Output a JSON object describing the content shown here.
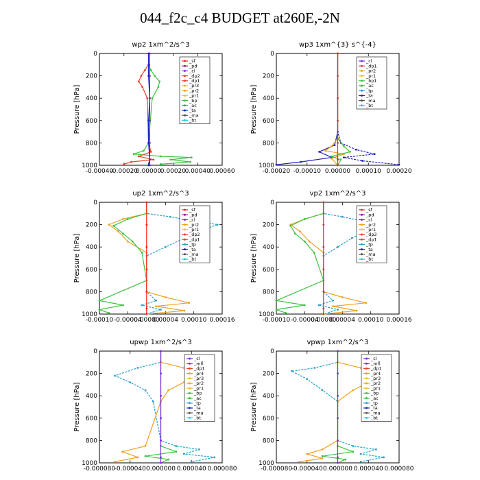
{
  "title": "044_f2c_c4  BUDGET at260E,-2N",
  "colors": {
    "sf": "#ff2020",
    "pd": "#8a1a8a",
    "cl": "#7a2ae0",
    "mfl": "#7a2ae0",
    "dp2": "#e8402a",
    "dp1": "#e8402a",
    "pr3": "#e8c020",
    "pr2": "#f0a020",
    "pr1": "#f0c030",
    "bp": "#40c040",
    "bp1": "#40c040",
    "ac": "#30b830",
    "tp": "#2aa0c8",
    "ta": "#2020c0",
    "ma": "#505050",
    "bt": "#20c8e0",
    "pr4": "#e0a020",
    "frame": "#000000"
  },
  "chart_data": [
    {
      "type": "line",
      "title": "wp2  1xm^2/s^3",
      "ylabel": "Pressure [hPa]",
      "xlim": [
        -0.0004,
        0.0006
      ],
      "ylim": [
        1000,
        0
      ],
      "xticks": [
        "-0.00040",
        "-0.00020",
        "0.00000",
        "0.00020",
        "0.00040",
        "0.00060"
      ],
      "xtick_values": [
        -0.0004,
        -0.0002,
        0,
        0.0002,
        0.0004,
        0.0006
      ],
      "yticks": [
        "0",
        "200",
        "400",
        "600",
        "800",
        "1000"
      ],
      "legend": [
        "_sf",
        "_pd",
        "_cl",
        "_dp2",
        "_dp1",
        "_pr3",
        "_pr2",
        "_pr1",
        "_bp",
        "_ac",
        "_ta",
        "_ma",
        "_bt"
      ],
      "series": [
        {
          "name": "_bp",
          "color": "bp",
          "x": [
            0,
            2e-05,
            5e-05,
            9e-05,
            8e-05,
            3e-05,
            0,
            -4e-05,
            -0.00012,
            0.0001,
            0.00035,
            0.00018,
            0.00034,
            0.0001
          ],
          "y": [
            100,
            150,
            200,
            250,
            300,
            400,
            800,
            870,
            900,
            920,
            930,
            950,
            970,
            990
          ]
        },
        {
          "name": "_dp1",
          "color": "dp1",
          "x": [
            0,
            -3e-05,
            -6e-05,
            -8e-05,
            -5e-05,
            -1e-05,
            0,
            2e-05,
            -8e-05,
            4e-05,
            -0.00014,
            -0.0002
          ],
          "y": [
            100,
            150,
            200,
            250,
            300,
            400,
            800,
            880,
            920,
            950,
            970,
            990
          ]
        },
        {
          "name": "_ta",
          "color": "ta",
          "x": [
            0,
            0,
            1e-05,
            0,
            0,
            1e-05,
            0
          ],
          "y": [
            0,
            200,
            400,
            600,
            800,
            950,
            1000
          ]
        },
        {
          "name": "_pd",
          "color": "pd",
          "x": [
            1e-05,
            1e-05,
            1e-05,
            1e-05,
            1e-05,
            1e-05,
            1e-05
          ],
          "y": [
            0,
            200,
            400,
            600,
            800,
            950,
            1000
          ]
        }
      ]
    },
    {
      "type": "line",
      "title": "wp3  1xm^{3} s^{-4}",
      "ylabel": "Pressure [hPa]",
      "xlim": [
        -0.0002,
        0.0002
      ],
      "ylim": [
        1000,
        0
      ],
      "xticks": [
        "-0.00020",
        "-0.00010",
        "0.00000",
        "0.00010",
        "0.00020"
      ],
      "xtick_values": [
        -0.0002,
        -0.0001,
        0,
        0.0001,
        0.0002
      ],
      "yticks": [
        "0",
        "200",
        "400",
        "600",
        "800",
        "1000"
      ],
      "legend": [
        "_cl",
        "_dp1",
        "_pr2",
        "_pr1",
        "_bp1",
        "_ac",
        "_tp",
        "_ta",
        "_ma",
        "_bt"
      ],
      "series": [
        {
          "name": "_tp",
          "color": "ta",
          "x": [
            0,
            0,
            1e-05,
            6e-05,
            0.00012,
            2e-05,
            8e-05,
            0.0002
          ],
          "y": [
            0,
            700,
            800,
            860,
            900,
            930,
            960,
            995
          ]
        },
        {
          "name": "_ta",
          "color": "ta",
          "x": [
            0,
            0,
            -1e-05,
            -6e-05,
            -2e-05,
            -0.00012,
            -0.0002
          ],
          "y": [
            0,
            700,
            820,
            880,
            930,
            970,
            995
          ]
        },
        {
          "name": "_pr2",
          "color": "pr2",
          "x": [
            0,
            0,
            -2e-05,
            -4e-05,
            2e-05,
            -2e-05,
            0
          ],
          "y": [
            0,
            760,
            830,
            870,
            900,
            940,
            1000
          ]
        },
        {
          "name": "_bp1",
          "color": "bp1",
          "x": [
            0,
            0,
            2e-05,
            4e-05,
            -2e-05,
            1e-05,
            0
          ],
          "y": [
            0,
            760,
            830,
            880,
            920,
            950,
            1000
          ]
        },
        {
          "name": "_cl",
          "color": "sf",
          "x": [
            0,
            0,
            0,
            0,
            0,
            0,
            0
          ],
          "y": [
            0,
            200,
            400,
            600,
            800,
            950,
            1000
          ]
        }
      ]
    },
    {
      "type": "line",
      "title": "up2  1xm^2/s^3",
      "ylabel": "Pressure [hPa]",
      "xlim": [
        -0.0001,
        0.00016
      ],
      "ylim": [
        1000,
        0
      ],
      "xticks": [
        "-0.00010",
        "-0.00004",
        "0.00000",
        "0.00004",
        "0.00010",
        "0.00016"
      ],
      "xtick_values": [
        -0.0001,
        -4e-05,
        0,
        4e-05,
        0.0001,
        0.00016
      ],
      "yticks": [
        "0",
        "200",
        "400",
        "600",
        "800",
        "1000"
      ],
      "legend": [
        "_sf",
        "_pd",
        "_cl",
        "_pr2",
        "_pr1",
        "_dp2",
        "_dp1",
        "_tp",
        "_ta",
        "_ma",
        "_bt"
      ],
      "series": [
        {
          "name": "_tp",
          "color": "tp",
          "x": [
            0,
            0,
            5e-05,
            0.00015,
            0.00011,
            8e-05,
            4e-05,
            0,
            0,
            2e-05,
            -1e-05,
            3e-05,
            0
          ],
          "y": [
            0,
            100,
            130,
            200,
            260,
            320,
            400,
            480,
            800,
            880,
            920,
            960,
            1000
          ]
        },
        {
          "name": "_pr2",
          "color": "pr2",
          "x": [
            0,
            0,
            -5e-05,
            -8e-05,
            -6e-05,
            -4e-05,
            0,
            0,
            4e-05,
            9e-05,
            2e-05,
            8e-05,
            0
          ],
          "y": [
            0,
            100,
            150,
            200,
            260,
            350,
            450,
            800,
            850,
            900,
            930,
            970,
            1000
          ]
        },
        {
          "name": "_dp1",
          "color": "bp",
          "x": [
            0,
            0,
            -4e-05,
            -7e-05,
            -5e-05,
            -3e-05,
            -1e-05,
            0,
            -0.0001,
            -5e-05,
            -0.0001,
            -8e-05
          ],
          "y": [
            0,
            100,
            150,
            210,
            280,
            350,
            450,
            700,
            880,
            920,
            960,
            990
          ]
        },
        {
          "name": "_sf",
          "color": "sf",
          "x": [
            0,
            0,
            0,
            0,
            0,
            0,
            0
          ],
          "y": [
            0,
            200,
            400,
            600,
            800,
            950,
            1000
          ]
        }
      ]
    },
    {
      "type": "line",
      "title": "vp2  1xm^2/s^3",
      "ylabel": "Pressure [hPa]",
      "xlim": [
        -0.0001,
        0.00016
      ],
      "ylim": [
        1000,
        0
      ],
      "xticks": [
        "-0.00010",
        "-0.00004",
        "0.00000",
        "0.00004",
        "0.00010",
        "0.00016"
      ],
      "xtick_values": [
        -0.0001,
        -4e-05,
        0,
        4e-05,
        0.0001,
        0.00016
      ],
      "yticks": [
        "0",
        "200",
        "400",
        "600",
        "800",
        "1000"
      ],
      "legend": [
        "_sf",
        "_pd",
        "_cl",
        "_pr2",
        "_pr1",
        "_dp2",
        "_dp1",
        "_tp",
        "_ta",
        "_ma",
        "_bt"
      ],
      "series": [
        {
          "name": "_tp",
          "color": "tp",
          "x": [
            0,
            0,
            4e-05,
            0.00012,
            9e-05,
            6e-05,
            3e-05,
            0,
            0,
            2e-05,
            -1e-05,
            3e-05,
            0
          ],
          "y": [
            0,
            100,
            130,
            200,
            260,
            320,
            400,
            480,
            800,
            880,
            920,
            960,
            1000
          ]
        },
        {
          "name": "_pr2",
          "color": "pr2",
          "x": [
            0,
            0,
            -4e-05,
            -7e-05,
            -5e-05,
            -3e-05,
            0,
            0,
            4e-05,
            9e-05,
            2e-05,
            7e-05,
            0
          ],
          "y": [
            0,
            100,
            150,
            200,
            260,
            350,
            450,
            800,
            850,
            900,
            930,
            970,
            1000
          ]
        },
        {
          "name": "_dp1",
          "color": "bp",
          "x": [
            0,
            0,
            -4e-05,
            -7e-05,
            -6e-05,
            -4e-05,
            -2e-05,
            0,
            -0.0001,
            -4e-05,
            -0.0001,
            -8e-05
          ],
          "y": [
            0,
            100,
            150,
            210,
            280,
            350,
            450,
            700,
            880,
            920,
            960,
            990
          ]
        },
        {
          "name": "_sf",
          "color": "sf",
          "x": [
            0,
            0,
            0,
            0,
            0,
            0,
            0
          ],
          "y": [
            0,
            200,
            400,
            600,
            800,
            950,
            1000
          ]
        }
      ]
    },
    {
      "type": "line",
      "title": "upwp  1xm^2/s^3",
      "ylabel": "Pressure [hPa]",
      "xlim": [
        -8e-05,
        8e-05
      ],
      "ylim": [
        1000,
        0
      ],
      "xticks": [
        "-0.000080",
        "-0.000040",
        "0.000000",
        "0.000040",
        "0.000080"
      ],
      "xtick_values": [
        -8e-05,
        -4e-05,
        0,
        4e-05,
        8e-05
      ],
      "yticks": [
        "0",
        "200",
        "400",
        "600",
        "800",
        "1000"
      ],
      "legend": [
        "_cl",
        "_mfl",
        "_dp1",
        "_pr4",
        "_pr3",
        "_pr2",
        "_pr1",
        "_bp",
        "_ac",
        "_tp",
        "_ta",
        "_ma",
        "_bt"
      ],
      "series": [
        {
          "name": "_tp",
          "color": "tp",
          "x": [
            0,
            0,
            -3e-05,
            -6e-05,
            -4e-05,
            -2e-05,
            -1e-05,
            0,
            2e-05,
            5e-05,
            3e-05,
            7e-05,
            4e-05
          ],
          "y": [
            0,
            100,
            150,
            220,
            280,
            350,
            450,
            800,
            850,
            880,
            920,
            950,
            990
          ]
        },
        {
          "name": "_pr2",
          "color": "pr2",
          "x": [
            0,
            0,
            3e-05,
            5e-05,
            3e-05,
            1e-05,
            0,
            -2e-05,
            -5e-05,
            -3e-05,
            -6e-05
          ],
          "y": [
            0,
            100,
            150,
            220,
            280,
            350,
            450,
            850,
            900,
            950,
            990
          ]
        },
        {
          "name": "_bp",
          "color": "bp",
          "x": [
            0,
            0,
            0,
            2e-05,
            -2e-05,
            1e-05,
            0
          ],
          "y": [
            0,
            600,
            850,
            900,
            940,
            970,
            1000
          ]
        },
        {
          "name": "_cl",
          "color": "cl",
          "x": [
            0,
            0,
            0,
            0,
            0,
            0,
            0
          ],
          "y": [
            0,
            200,
            400,
            600,
            800,
            950,
            1000
          ]
        }
      ]
    },
    {
      "type": "line",
      "title": "vpwp  1xm^2/s^3",
      "ylabel": "Pressure [hPa]",
      "xlim": [
        -8e-05,
        8e-05
      ],
      "ylim": [
        1000,
        0
      ],
      "xticks": [
        "-0.000080",
        "-0.000040",
        "0.000000",
        "0.000040",
        "0.000080"
      ],
      "xtick_values": [
        -8e-05,
        -4e-05,
        0,
        4e-05,
        8e-05
      ],
      "yticks": [
        "0",
        "200",
        "400",
        "600",
        "800",
        "1000"
      ],
      "legend": [
        "_cl",
        "_mfl",
        "_dp1",
        "_pr4",
        "_pr3",
        "_pr2",
        "_pr1",
        "_bp",
        "_ac",
        "_tp",
        "_ta",
        "_ma",
        "_bt"
      ],
      "series": [
        {
          "name": "_tp",
          "color": "tp",
          "x": [
            0,
            0,
            -3e-05,
            -6e-05,
            -4e-05,
            -2e-05,
            0,
            0,
            2e-05,
            5e-05,
            3e-05,
            6e-05,
            3e-05
          ],
          "y": [
            0,
            100,
            150,
            180,
            250,
            350,
            450,
            800,
            850,
            880,
            920,
            950,
            990
          ]
        },
        {
          "name": "_pr2",
          "color": "pr2",
          "x": [
            0,
            0,
            3e-05,
            5e-05,
            4e-05,
            2e-05,
            0,
            0,
            -2e-05,
            -4e-05,
            -2e-05,
            -5e-05
          ],
          "y": [
            0,
            100,
            150,
            200,
            280,
            350,
            450,
            800,
            880,
            920,
            960,
            990
          ]
        },
        {
          "name": "_bp",
          "color": "bp",
          "x": [
            0,
            0,
            0,
            2e-05,
            -2e-05,
            1e-05,
            0
          ],
          "y": [
            0,
            600,
            850,
            900,
            940,
            970,
            1000
          ]
        },
        {
          "name": "_cl",
          "color": "cl",
          "x": [
            0,
            0,
            0,
            0,
            0,
            0,
            0
          ],
          "y": [
            0,
            200,
            400,
            600,
            800,
            950,
            1000
          ]
        }
      ]
    }
  ]
}
